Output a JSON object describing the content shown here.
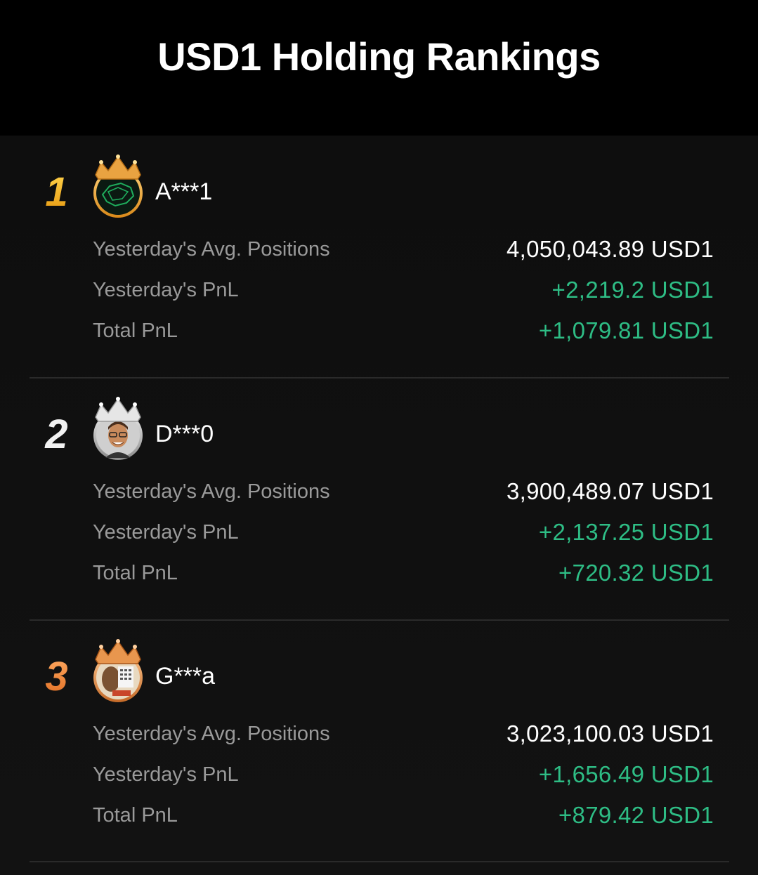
{
  "page": {
    "title": "USD1 Holding Rankings"
  },
  "labels": {
    "avg_positions": "Yesterday's Avg. Positions",
    "yesterday_pnl": "Yesterday's PnL",
    "total_pnl": "Total PnL"
  },
  "colors": {
    "background": "#000000",
    "panel": "#111111",
    "label_gray": "#9a9a9a",
    "profit_green": "#2ebd85",
    "gold": "#f4b21e",
    "silver": "#d8d8d8",
    "bronze": "#f08a3a"
  },
  "rankings": [
    {
      "rank": "1",
      "name": "A***1",
      "crown": "gold-crown-icon",
      "avg_positions": "4,050,043.89 USD1",
      "yesterday_pnl": "+2,219.2 USD1",
      "total_pnl": "+1,079.81 USD1"
    },
    {
      "rank": "2",
      "name": "D***0",
      "crown": "silver-crown-icon",
      "avg_positions": "3,900,489.07 USD1",
      "yesterday_pnl": "+2,137.25 USD1",
      "total_pnl": "+720.32 USD1"
    },
    {
      "rank": "3",
      "name": "G***a",
      "crown": "bronze-crown-icon",
      "avg_positions": "3,023,100.03 USD1",
      "yesterday_pnl": "+1,656.49 USD1",
      "total_pnl": "+879.42 USD1"
    }
  ]
}
